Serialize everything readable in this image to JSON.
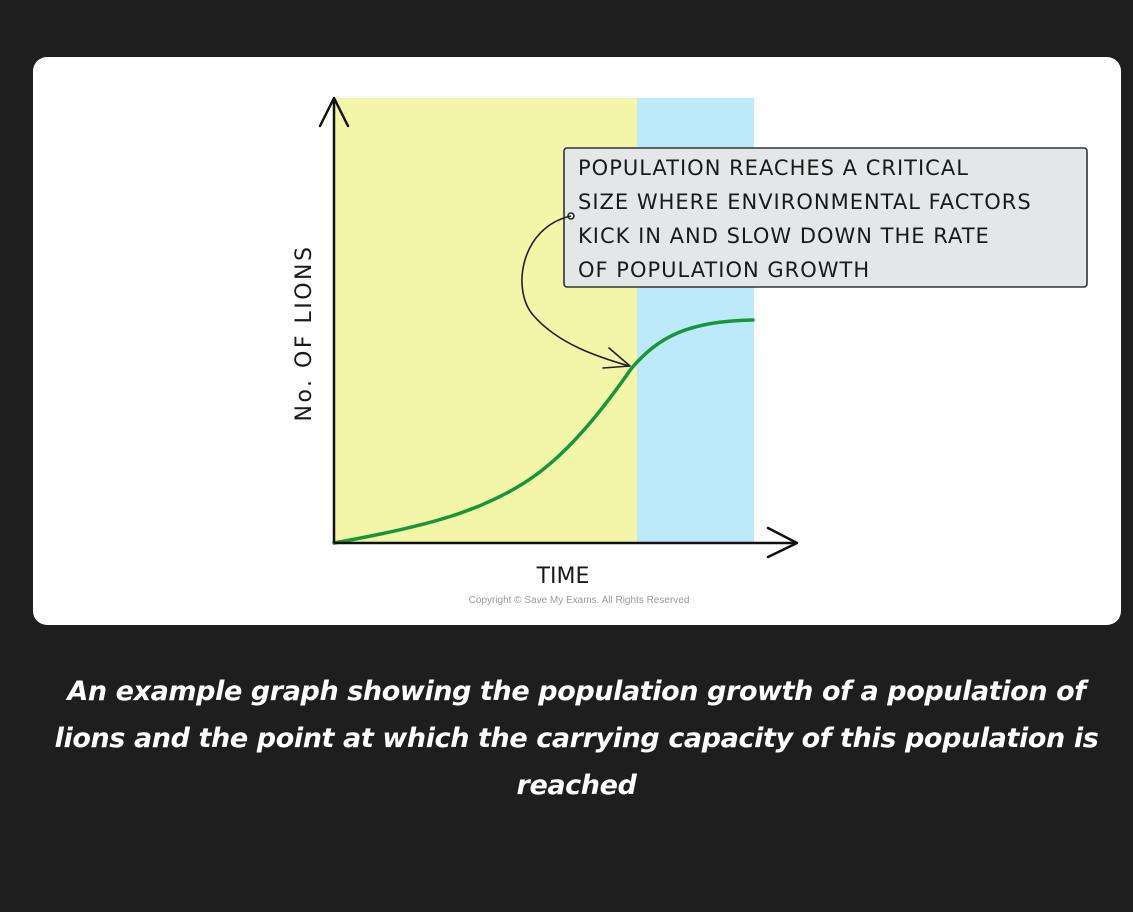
{
  "figure": {
    "y_axis_label": "No. OF LIONS",
    "x_axis_label": "TIME",
    "annotation_lines": [
      "POPULATION REACHES A CRITICAL",
      "SIZE WHERE ENVIRONMENTAL FACTORS",
      "KICK IN AND SLOW DOWN THE RATE",
      "OF POPULATION GROWTH"
    ],
    "copyright": "Copyright © Save My Exams. All Rights Reserved",
    "colors": {
      "growth_region": "#f3f5a8",
      "capacity_region": "#bdeafa",
      "curve": "#17963a",
      "callout_fill": "#e4e6e7"
    }
  },
  "caption": "An example graph showing the population growth of a population of lions and the point at which the carrying capacity of this population is reached"
}
